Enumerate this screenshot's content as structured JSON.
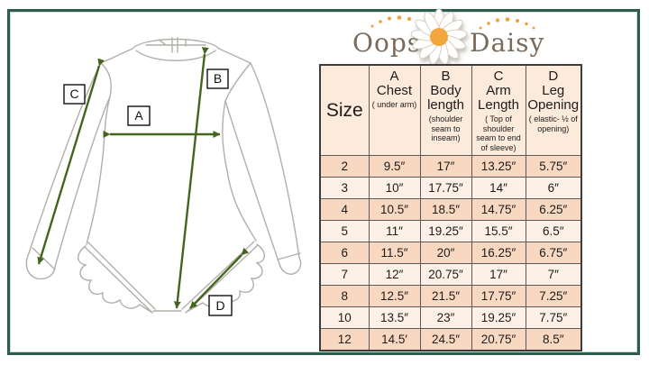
{
  "brand": {
    "word1": "Oopsie",
    "word2": "Daisy",
    "icon": "daisy-flower-icon"
  },
  "diagram": {
    "labels": [
      "A",
      "B",
      "C",
      "D"
    ]
  },
  "table": {
    "size_header": "Size",
    "columns": [
      {
        "letter": "A",
        "name": "Chest",
        "note": "( under arm)"
      },
      {
        "letter": "B",
        "name": "Body length",
        "note": "(shoulder seam to inseam)"
      },
      {
        "letter": "C",
        "name": "Arm Length",
        "note": "( Top of shoulder seam to end of sleeve)"
      },
      {
        "letter": "D",
        "name": "Leg Opening",
        "note": "( elastic- ½ of opening)"
      }
    ],
    "rows": [
      {
        "size": "2",
        "chest": "9.5″",
        "body_length": "17″",
        "arm_length": "13.25″",
        "leg_opening": "5.75″"
      },
      {
        "size": "3",
        "chest": "10″",
        "body_length": "17.75″",
        "arm_length": "14″",
        "leg_opening": "6″"
      },
      {
        "size": "4",
        "chest": "10.5″",
        "body_length": "18.5″",
        "arm_length": "14.75″",
        "leg_opening": "6.25″"
      },
      {
        "size": "5",
        "chest": "11″",
        "body_length": "19.25″",
        "arm_length": "15.5″",
        "leg_opening": "6.5″"
      },
      {
        "size": "6",
        "chest": "11.5″",
        "body_length": "20″",
        "arm_length": "16.25″",
        "leg_opening": "6.75″"
      },
      {
        "size": "7",
        "chest": "12″",
        "body_length": "20.75″",
        "arm_length": "17″",
        "leg_opening": "7″"
      },
      {
        "size": "8",
        "chest": "12.5″",
        "body_length": "21.5″",
        "arm_length": "17.75″",
        "leg_opening": "7.25″"
      },
      {
        "size": "10",
        "chest": "13.5″",
        "body_length": "23″",
        "arm_length": "19.25″",
        "leg_opening": "7.75″"
      },
      {
        "size": "12",
        "chest": "14.5′",
        "body_length": "24.5″",
        "arm_length": "20.75″",
        "leg_opening": "8.5″"
      }
    ]
  },
  "colors": {
    "frame": "#2e5b50",
    "arrow": "#44651f",
    "header_bg": "#fceadb",
    "row_dark": "#f8d8c0",
    "row_light": "#fdf0e6",
    "logo_text": "#7b6a5a",
    "daisy_center": "#f3a63e"
  }
}
